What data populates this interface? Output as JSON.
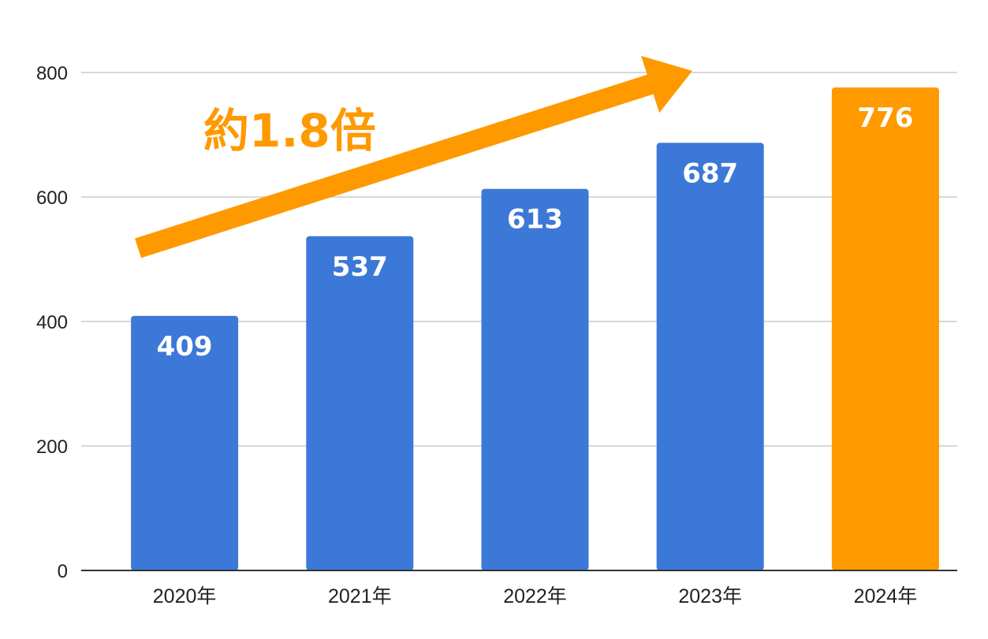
{
  "chart_data": {
    "type": "bar",
    "categories": [
      "2020年",
      "2021年",
      "2022年",
      "2023年",
      "2024年"
    ],
    "values": [
      409,
      537,
      613,
      687,
      776
    ],
    "ylim": [
      0,
      800
    ],
    "yticks": [
      0,
      200,
      400,
      600,
      800
    ],
    "grid": true,
    "colors": {
      "default_bar": "#3c78d8",
      "highlight_bar": "#ff9900",
      "grid": "#cccccc",
      "axis": "#333333"
    },
    "highlight_index": 4,
    "annotation": {
      "text": "約1.8倍",
      "color": "#ff9900"
    }
  }
}
